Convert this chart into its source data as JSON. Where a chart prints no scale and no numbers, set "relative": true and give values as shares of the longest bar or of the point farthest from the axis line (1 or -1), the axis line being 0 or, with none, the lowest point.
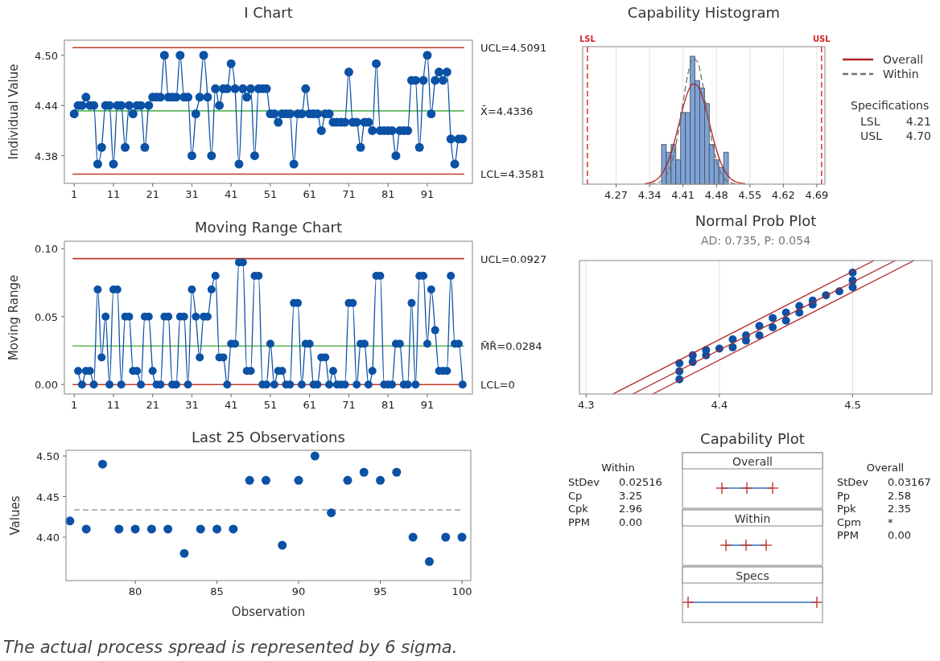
{
  "chart_data": [
    {
      "type": "line",
      "title": "I Chart",
      "ylabel": "Individual Value",
      "marker": "circle",
      "x": [
        1,
        2,
        3,
        4,
        5,
        6,
        7,
        8,
        9,
        10,
        11,
        12,
        13,
        14,
        15,
        16,
        17,
        18,
        19,
        20,
        21,
        22,
        23,
        24,
        25,
        26,
        27,
        28,
        29,
        30,
        31,
        32,
        33,
        34,
        35,
        36,
        37,
        38,
        39,
        40,
        41,
        42,
        43,
        44,
        45,
        46,
        47,
        48,
        49,
        50,
        51,
        52,
        53,
        54,
        55,
        56,
        57,
        58,
        59,
        60,
        61,
        62,
        63,
        64,
        65,
        66,
        67,
        68,
        69,
        70,
        71,
        72,
        73,
        74,
        75,
        76,
        77,
        78,
        79,
        80,
        81,
        82,
        83,
        84,
        85,
        86,
        87,
        88,
        89,
        90,
        91,
        92,
        93,
        94,
        95,
        96,
        97,
        98,
        99,
        100
      ],
      "series": [
        {
          "color": "#0b51a5",
          "values": [
            4.43,
            4.44,
            4.44,
            4.45,
            4.44,
            4.44,
            4.37,
            4.39,
            4.44,
            4.44,
            4.37,
            4.44,
            4.44,
            4.39,
            4.44,
            4.43,
            4.44,
            4.44,
            4.39,
            4.44,
            4.45,
            4.45,
            4.45,
            4.5,
            4.45,
            4.45,
            4.45,
            4.5,
            4.45,
            4.45,
            4.38,
            4.43,
            4.45,
            4.5,
            4.45,
            4.38,
            4.46,
            4.44,
            4.46,
            4.46,
            4.49,
            4.46,
            4.37,
            4.46,
            4.45,
            4.46,
            4.38,
            4.46,
            4.46,
            4.46,
            4.43,
            4.43,
            4.42,
            4.43,
            4.43,
            4.43,
            4.37,
            4.43,
            4.43,
            4.46,
            4.43,
            4.43,
            4.43,
            4.41,
            4.43,
            4.43,
            4.42,
            4.42,
            4.42,
            4.42,
            4.48,
            4.42,
            4.42,
            4.39,
            4.42,
            4.42,
            4.41,
            4.49,
            4.41,
            4.41,
            4.41,
            4.41,
            4.38,
            4.41,
            4.41,
            4.41,
            4.47,
            4.47,
            4.39,
            4.47,
            4.5,
            4.43,
            4.47,
            4.48,
            4.47,
            4.48,
            4.4,
            4.37,
            4.4,
            4.4
          ]
        }
      ],
      "xlim": [
        -1.5,
        102.5
      ],
      "xticks": [
        1,
        11,
        21,
        31,
        41,
        51,
        61,
        71,
        81,
        91
      ],
      "ylim": [
        4.347,
        4.518
      ],
      "yticks": [
        4.38,
        4.44,
        {
          "value": 4.5,
          "label": "4.50"
        }
      ],
      "ref_lines": [
        {
          "axis": "y",
          "value": 4.5091,
          "label": "UCL=4.5091",
          "color": "#c0392b"
        },
        {
          "axis": "y",
          "value": 4.4336,
          "label": "X̄=4.4336",
          "color": "#5cb85c"
        },
        {
          "axis": "y",
          "value": 4.3581,
          "label": "LCL=4.3581",
          "color": "#c0392b"
        }
      ]
    },
    {
      "type": "histogram",
      "title": "Capability Histogram",
      "relative": true,
      "color": "#7ba3d9",
      "bins": [
        4.365,
        4.375,
        4.385,
        4.395,
        4.405,
        4.415,
        4.425,
        4.435,
        4.445,
        4.455,
        4.465,
        4.475,
        4.485,
        4.495,
        4.505
      ],
      "values": [
        0.31,
        0.25,
        0.31,
        0.19,
        0.56,
        0.56,
        1,
        0.81,
        0.75,
        0.63,
        0.31,
        0.19,
        0.13,
        0.25
      ],
      "series": [
        {
          "name": "Overall",
          "type": "line",
          "color": "#b22222",
          "x": [
            4.33,
            4.34,
            4.35,
            4.36,
            4.37,
            4.38,
            4.39,
            4.4,
            4.41,
            4.42,
            4.43,
            4.44,
            4.45,
            4.46,
            4.47,
            4.48,
            4.49,
            4.5,
            4.51,
            4.52,
            4.53,
            4.54
          ],
          "values": [
            0.004,
            0.01,
            0.024,
            0.053,
            0.105,
            0.188,
            0.305,
            0.449,
            0.597,
            0.719,
            0.783,
            0.772,
            0.689,
            0.557,
            0.407,
            0.269,
            0.161,
            0.087,
            0.043,
            0.019,
            0.008,
            0.003
          ]
        },
        {
          "name": "Within",
          "type": "line",
          "line_style": "dashed",
          "color": "#707070",
          "x": [
            4.34,
            4.35,
            4.36,
            4.37,
            4.38,
            4.39,
            4.4,
            4.41,
            4.42,
            4.43,
            4.44,
            4.45,
            4.46,
            4.47,
            4.48,
            4.49,
            4.5,
            4.51,
            4.52
          ],
          "values": [
            0.001,
            0.004,
            0.014,
            0.041,
            0.102,
            0.221,
            0.406,
            0.638,
            0.856,
            0.981,
            0.959,
            0.801,
            0.572,
            0.348,
            0.181,
            0.08,
            0.03,
            0.01,
            0.003
          ]
        }
      ],
      "xlim": [
        4.2,
        4.707
      ],
      "xticks": [
        4.27,
        4.34,
        4.41,
        4.48,
        4.55,
        4.62,
        4.69
      ],
      "grid": "x",
      "legend": "right",
      "ref_lines": [
        {
          "axis": "x",
          "value": 4.21,
          "label": "LSL",
          "color": "#d62728",
          "line_style": "dashed"
        },
        {
          "axis": "x",
          "value": 4.7,
          "label": "USL",
          "color": "#d62728",
          "line_style": "dashed"
        }
      ],
      "annotations": [
        "Specifications",
        "LSL",
        "4.21",
        "USL",
        "4.70"
      ]
    },
    {
      "type": "line",
      "title": "Moving Range Chart",
      "ylabel": "Moving Range",
      "marker": "circle",
      "x": [
        2,
        3,
        4,
        5,
        6,
        7,
        8,
        9,
        10,
        11,
        12,
        13,
        14,
        15,
        16,
        17,
        18,
        19,
        20,
        21,
        22,
        23,
        24,
        25,
        26,
        27,
        28,
        29,
        30,
        31,
        32,
        33,
        34,
        35,
        36,
        37,
        38,
        39,
        40,
        41,
        42,
        43,
        44,
        45,
        46,
        47,
        48,
        49,
        50,
        51,
        52,
        53,
        54,
        55,
        56,
        57,
        58,
        59,
        60,
        61,
        62,
        63,
        64,
        65,
        66,
        67,
        68,
        69,
        70,
        71,
        72,
        73,
        74,
        75,
        76,
        77,
        78,
        79,
        80,
        81,
        82,
        83,
        84,
        85,
        86,
        87,
        88,
        89,
        90,
        91,
        92,
        93,
        94,
        95,
        96,
        97,
        98,
        99,
        100
      ],
      "series": [
        {
          "color": "#0b51a5",
          "values": [
            0.01,
            0,
            0.01,
            0.01,
            0,
            0.07,
            0.02,
            0.05,
            0,
            0.07,
            0.07,
            0,
            0.05,
            0.05,
            0.01,
            0.01,
            0,
            0.05,
            0.05,
            0.01,
            0,
            0,
            0.05,
            0.05,
            0,
            0,
            0.05,
            0.05,
            0,
            0.07,
            0.05,
            0.02,
            0.05,
            0.05,
            0.07,
            0.08,
            0.02,
            0.02,
            0,
            0.03,
            0.03,
            0.09,
            0.09,
            0.01,
            0.01,
            0.08,
            0.08,
            0,
            0,
            0.03,
            0,
            0.01,
            0.01,
            0,
            0,
            0.06,
            0.06,
            0,
            0.03,
            0.03,
            0,
            0,
            0.02,
            0.02,
            0,
            0.01,
            0,
            0,
            0,
            0.06,
            0.06,
            0,
            0.03,
            0.03,
            0,
            0.01,
            0.08,
            0.08,
            0,
            0,
            0,
            0.03,
            0.03,
            0,
            0,
            0.06,
            0,
            0.08,
            0.08,
            0.03,
            0.07,
            0.04,
            0.01,
            0.01,
            0.01,
            0.08,
            0.03,
            0.03,
            0
          ]
        }
      ],
      "xlim": [
        -1.5,
        102.5
      ],
      "xticks": [
        1,
        11,
        21,
        31,
        41,
        51,
        61,
        71,
        81,
        91
      ],
      "ylim": [
        -0.007,
        0.1055
      ],
      "yticks": [
        {
          "value": 0,
          "label": "0.00"
        },
        0.05,
        {
          "value": 0.1,
          "label": "0.10"
        }
      ],
      "ref_lines": [
        {
          "axis": "y",
          "value": 0.0927,
          "label": "UCL=0.0927",
          "color": "#c0392b"
        },
        {
          "axis": "y",
          "value": 0.0284,
          "label": "M̄R̄=0.0284",
          "color": "#5cb85c"
        },
        {
          "axis": "y",
          "value": 0,
          "label": "LCL=0",
          "color": "#c0392b"
        }
      ]
    },
    {
      "type": "scatter",
      "title": "Normal Prob Plot",
      "subtitle": "AD: 0.735, P: 0.054",
      "relative": true,
      "series": [
        {
          "type": "scatter",
          "color": "#0b51a5",
          "x": [
            4.37,
            4.37,
            4.37,
            4.38,
            4.38,
            4.39,
            4.39,
            4.4,
            4.41,
            4.41,
            4.42,
            4.42,
            4.43,
            4.43,
            4.44,
            4.44,
            4.45,
            4.45,
            4.46,
            4.46,
            4.47,
            4.47,
            4.48,
            4.49,
            4.5,
            4.5,
            4.5
          ],
          "values": [
            0.11,
            0.17,
            0.23,
            0.24,
            0.29,
            0.29,
            0.33,
            0.34,
            0.35,
            0.41,
            0.4,
            0.44,
            0.44,
            0.51,
            0.5,
            0.57,
            0.55,
            0.61,
            0.61,
            0.66,
            0.67,
            0.7,
            0.74,
            0.77,
            0.8,
            0.85,
            0.91
          ]
        },
        {
          "type": "line",
          "color": "#b22222",
          "x": [
            4.32,
            4.516
          ],
          "values": [
            0,
            1
          ]
        },
        {
          "type": "line",
          "color": "#b22222",
          "x": [
            4.335,
            4.532
          ],
          "values": [
            0,
            1
          ]
        },
        {
          "type": "line",
          "color": "#b22222",
          "x": [
            4.35,
            4.546
          ],
          "values": [
            0,
            1
          ]
        }
      ],
      "xlim": [
        4.295,
        4.5595
      ],
      "xticks": [
        4.3,
        4.4,
        4.5
      ],
      "grid": "x"
    },
    {
      "type": "scatter",
      "title": "Last 25 Observations",
      "xlabel": "Observation",
      "ylabel": "Values",
      "marker": "circle",
      "x": [
        76,
        77,
        78,
        79,
        80,
        81,
        82,
        83,
        84,
        85,
        86,
        87,
        88,
        89,
        90,
        91,
        92,
        93,
        94,
        95,
        96,
        97,
        98,
        99,
        100
      ],
      "series": [
        {
          "color": "#0b51a5",
          "values": [
            4.42,
            4.41,
            4.49,
            4.41,
            4.41,
            4.41,
            4.41,
            4.38,
            4.41,
            4.41,
            4.41,
            4.47,
            4.47,
            4.39,
            4.47,
            4.5,
            4.43,
            4.47,
            4.48,
            4.47,
            4.48,
            4.4,
            4.37,
            4.4,
            4.4
          ]
        }
      ],
      "xlim": [
        75.76,
        100.54
      ],
      "xticks": [
        80,
        85,
        90,
        95,
        100
      ],
      "ylim": [
        4.3465,
        4.507
      ],
      "yticks": [
        {
          "value": 4.4,
          "label": "4.40"
        },
        4.45,
        {
          "value": 4.5,
          "label": "4.50"
        }
      ],
      "ref_lines": [
        {
          "axis": "y",
          "value": 4.4336,
          "color": "#aaaaaa",
          "line_style": "dashed"
        }
      ]
    },
    {
      "type": "other",
      "title": "Capability Plot",
      "categories": [
        "Overall",
        "Within",
        "Specs"
      ],
      "annotations": [
        "Within",
        "StDev",
        "0.02516",
        "Cp",
        "3.25",
        "Cpk",
        "2.96",
        "PPM",
        "0.00",
        "Overall",
        "StDev",
        "0.03167",
        "Pp",
        "2.58",
        "Ppk",
        "2.35",
        "Cpm",
        "*",
        "PPM",
        "0.00",
        "The actual process spread is represented by 6 sigma."
      ]
    }
  ]
}
